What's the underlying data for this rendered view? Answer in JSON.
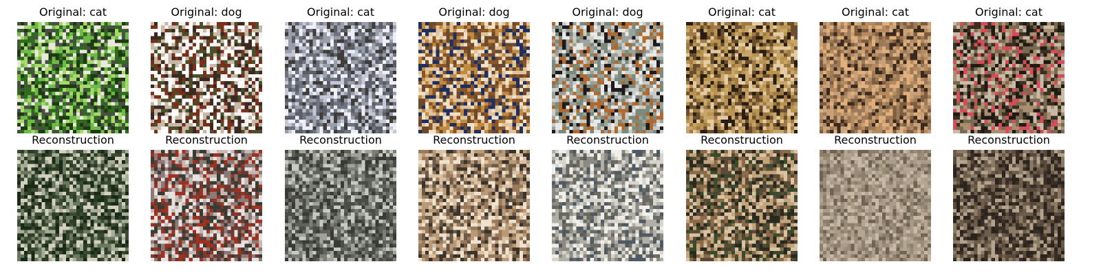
{
  "panels": [
    {
      "original_title": "Original: cat",
      "reconstruction_title": "Reconstruction",
      "original_palette": [
        "#2f6b1f",
        "#6fb84a",
        "#a6d86a",
        "#4a4f45",
        "#eae7dd",
        "#1e3a12"
      ],
      "reconstruction_palette": [
        "#1b2a18",
        "#3a4a34",
        "#6a7860",
        "#a8ad98",
        "#2b3d22",
        "#d4d0c0"
      ]
    },
    {
      "original_title": "Original: dog",
      "reconstruction_title": "Reconstruction",
      "original_palette": [
        "#f4f1ee",
        "#7a2f1a",
        "#3a2a22",
        "#c9b7a7",
        "#4b4f2a",
        "#ffffff"
      ],
      "reconstruction_palette": [
        "#e6e2e0",
        "#6b3a33",
        "#8b7a78",
        "#c6b8b0",
        "#3a3b32",
        "#a03020"
      ]
    },
    {
      "original_title": "Original: cat",
      "reconstruction_title": "Reconstruction",
      "original_palette": [
        "#6f737d",
        "#9a9ea8",
        "#5a5e66",
        "#c3c7d6",
        "#3f3c3a",
        "#eef0f8"
      ],
      "reconstruction_palette": [
        "#7b7f76",
        "#4a4d45",
        "#a1a39a",
        "#c7c9c4",
        "#3a3a35",
        "#5f625a"
      ]
    },
    {
      "original_title": "Original: dog",
      "reconstruction_title": "Reconstruction",
      "original_palette": [
        "#c28a3f",
        "#8c5527",
        "#e0c39b",
        "#1f2f60",
        "#6a4a2e",
        "#f0e2c8"
      ],
      "reconstruction_palette": [
        "#d8c0a0",
        "#9a7a5a",
        "#efe3d0",
        "#6b5a48",
        "#b99a78",
        "#3c342c"
      ]
    },
    {
      "original_title": "Original: dog",
      "reconstruction_title": "Reconstruction",
      "original_palette": [
        "#c8cbc6",
        "#9aa29b",
        "#e8e9e6",
        "#7b8a7b",
        "#b06a2f",
        "#1d1b1d"
      ],
      "reconstruction_palette": [
        "#d7d4cc",
        "#b1b0a7",
        "#8c8a82",
        "#efeee8",
        "#6b6a62",
        "#4f5a62"
      ]
    },
    {
      "original_title": "Original: cat",
      "reconstruction_title": "Reconstruction",
      "original_palette": [
        "#c8a56a",
        "#a07a44",
        "#e3caa0",
        "#6a4e2e",
        "#2a1e12",
        "#b8944f"
      ],
      "reconstruction_palette": [
        "#c4a47c",
        "#8a6a48",
        "#5a4a36",
        "#2b2a20",
        "#d9c3a2",
        "#3a4a2c"
      ]
    },
    {
      "original_title": "Original: cat",
      "reconstruction_title": "Reconstruction",
      "original_palette": [
        "#b58a5f",
        "#e0b07c",
        "#7f5e40",
        "#c8a17a",
        "#3b2a1d",
        "#9a7a58"
      ],
      "reconstruction_palette": [
        "#a99c8a",
        "#8c7e6c",
        "#c7b9a6",
        "#6f6353",
        "#b6a691",
        "#9b8b77"
      ]
    },
    {
      "original_title": "Original: cat",
      "reconstruction_title": "Reconstruction",
      "original_palette": [
        "#3b2f22",
        "#7a6a52",
        "#a98f6f",
        "#1e1a14",
        "#c7bba7",
        "#d84c5a"
      ],
      "reconstruction_palette": [
        "#3a2f26",
        "#6b5c4c",
        "#8a7a66",
        "#2a241d",
        "#b3a38d",
        "#5a4a3a"
      ]
    }
  ]
}
